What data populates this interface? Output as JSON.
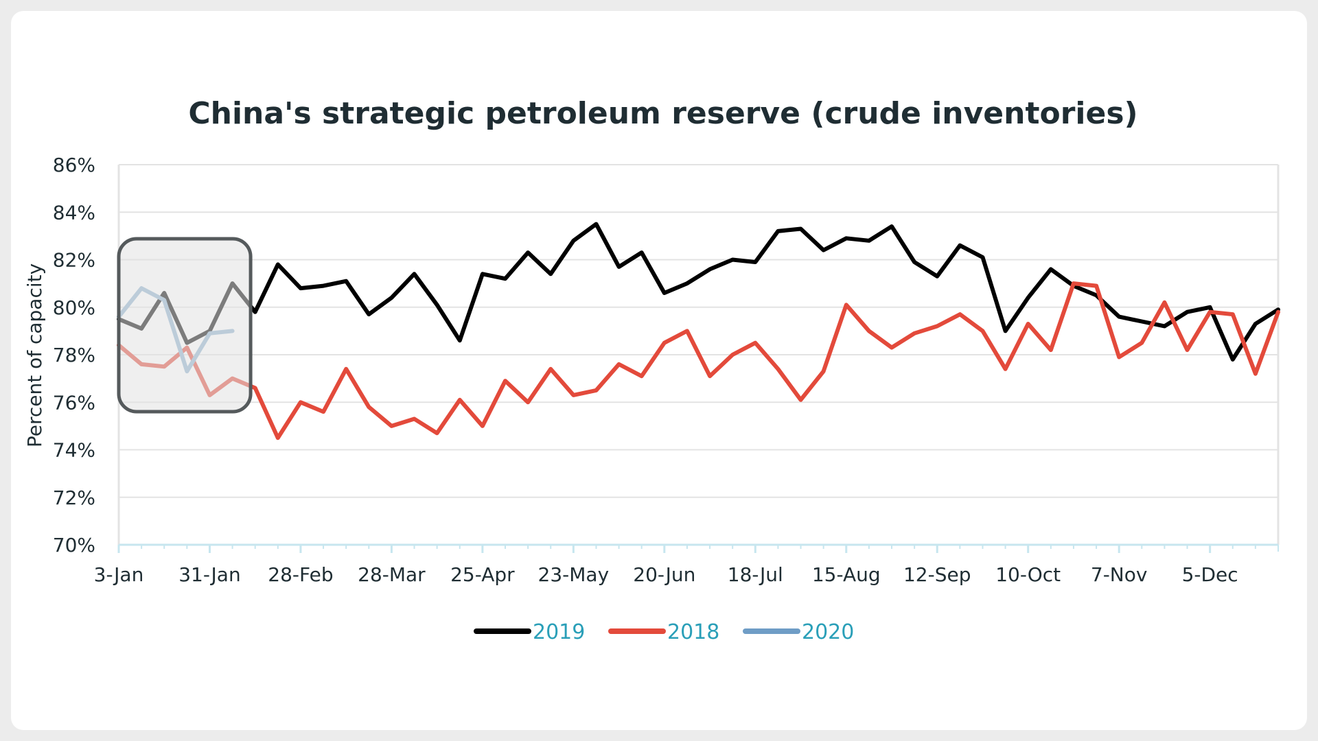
{
  "chart_data": {
    "type": "line",
    "title": "China's strategic petroleum reserve (crude inventories)",
    "ylabel": "Percent of capacity",
    "xlabel": "",
    "ylim": [
      70,
      86
    ],
    "y_ticks": [
      "70%",
      "72%",
      "74%",
      "76%",
      "78%",
      "80%",
      "82%",
      "84%",
      "86%"
    ],
    "x_tick_labels": [
      "3-Jan",
      "31-Jan",
      "28-Feb",
      "28-Mar",
      "25-Apr",
      "23-May",
      "20-Jun",
      "18-Jul",
      "15-Aug",
      "12-Sep",
      "10-Oct",
      "7-Nov",
      "5-Dec"
    ],
    "x_tick_weeks": [
      0,
      4,
      8,
      12,
      16,
      20,
      24,
      28,
      32,
      36,
      40,
      44,
      48
    ],
    "x_range_weeks": [
      0,
      51
    ],
    "grid": "horizontal",
    "legend_position": "bottom-center",
    "highlight_box_weeks": [
      0,
      5.8
    ],
    "series": [
      {
        "name": "2019",
        "color": "#000000",
        "values": [
          79.5,
          79.1,
          80.6,
          78.5,
          79.0,
          81.0,
          79.8,
          81.8,
          80.8,
          80.9,
          81.1,
          79.7,
          80.4,
          81.4,
          80.1,
          78.6,
          81.4,
          81.2,
          82.3,
          81.4,
          82.8,
          83.5,
          81.7,
          82.3,
          80.6,
          81.0,
          81.6,
          82.0,
          81.9,
          83.2,
          83.3,
          82.4,
          82.9,
          82.8,
          83.4,
          81.9,
          81.3,
          82.6,
          82.1,
          79.0,
          80.4,
          81.6,
          80.9,
          80.5,
          79.6,
          79.4,
          79.2,
          79.8,
          80.0,
          77.8,
          79.3,
          79.9
        ]
      },
      {
        "name": "2018",
        "color": "#e34a3b",
        "values": [
          78.4,
          77.6,
          77.5,
          78.3,
          76.3,
          77.0,
          76.6,
          74.5,
          76.0,
          75.6,
          77.4,
          75.8,
          75.0,
          75.3,
          74.7,
          76.1,
          75.0,
          76.9,
          76.0,
          77.4,
          76.3,
          76.5,
          77.6,
          77.1,
          78.5,
          79.0,
          77.1,
          78.0,
          78.5,
          77.4,
          76.1,
          77.3,
          80.1,
          79.0,
          78.3,
          78.9,
          79.2,
          79.7,
          79.0,
          77.4,
          79.3,
          78.2,
          81.0,
          80.9,
          77.9,
          78.5,
          80.2,
          78.2,
          79.8,
          79.7,
          77.2,
          79.8
        ]
      },
      {
        "name": "2020",
        "color": "#8fb2cf",
        "values": [
          79.6,
          80.8,
          80.3,
          77.3,
          78.9,
          79.0
        ]
      }
    ]
  }
}
